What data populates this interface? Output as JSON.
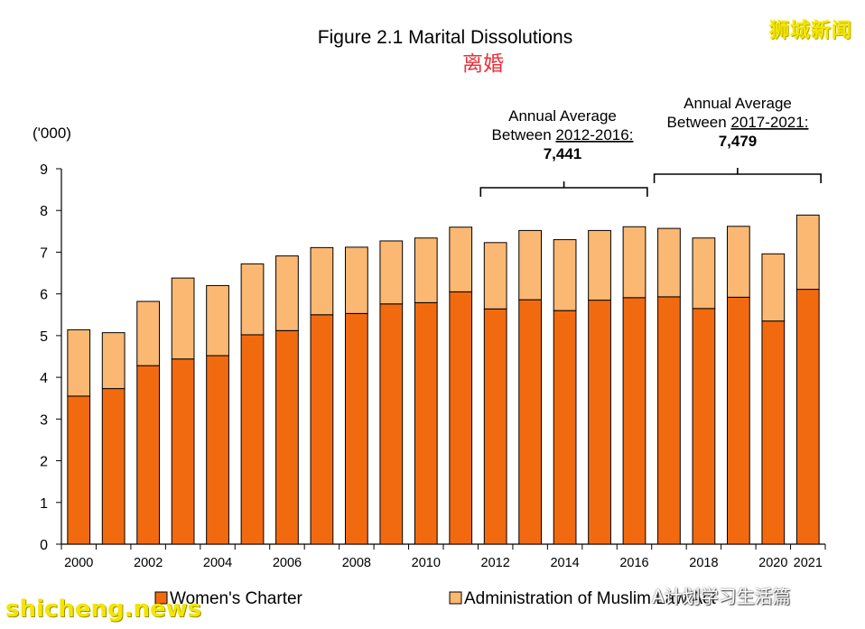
{
  "chart_data": {
    "type": "bar",
    "stacked": true,
    "title": "Figure 2.1      Marital Dissolutions",
    "subtitle": "离婚",
    "ylabel": "('000)",
    "ylim": [
      0,
      9
    ],
    "yticks": [
      "0",
      "1",
      "2",
      "3",
      "4",
      "5",
      "6",
      "7",
      "8",
      "9"
    ],
    "categories": [
      "2000",
      "2001",
      "2002",
      "2003",
      "2004",
      "2005",
      "2006",
      "2007",
      "2008",
      "2009",
      "2010",
      "2011",
      "2012",
      "2013",
      "2014",
      "2015",
      "2016",
      "2017",
      "2018",
      "2019",
      "2020",
      "2021"
    ],
    "tick_labels": [
      "2000",
      "",
      "2002",
      "",
      "2004",
      "",
      "2006",
      "",
      "2008",
      "",
      "2010",
      "",
      "2012",
      "",
      "2014",
      "",
      "2016",
      "",
      "2018",
      "",
      "2020",
      "2021"
    ],
    "series": [
      {
        "name": "Women's Charter",
        "color": "#f26a10",
        "values": [
          3.55,
          3.73,
          4.28,
          4.44,
          4.52,
          5.02,
          5.12,
          5.5,
          5.53,
          5.76,
          5.79,
          6.05,
          5.64,
          5.86,
          5.6,
          5.85,
          5.91,
          5.93,
          5.65,
          5.92,
          5.35,
          6.11
        ]
      },
      {
        "name": "Administration of Muslim Law Act",
        "color": "#fbb872",
        "values": [
          1.59,
          1.34,
          1.54,
          1.94,
          1.68,
          1.7,
          1.79,
          1.61,
          1.59,
          1.51,
          1.55,
          1.55,
          1.59,
          1.66,
          1.7,
          1.67,
          1.7,
          1.64,
          1.69,
          1.7,
          1.61,
          1.78
        ]
      }
    ],
    "annotations": [
      {
        "line1": "Annual Average",
        "line2_prefix": "Between ",
        "period": "2012-2016:",
        "value": "7,441",
        "from": "2012",
        "to": "2016"
      },
      {
        "line1": "Annual Average",
        "line2_prefix": "Between ",
        "period": "2017-2021:",
        "value": "7,479",
        "from": "2017",
        "to": "2021"
      }
    ],
    "legend_position": "bottom",
    "grid": false
  },
  "watermarks": {
    "logo": "狮城新闻",
    "site": "shicheng.news",
    "wechat": "A计划学习生活篇"
  }
}
